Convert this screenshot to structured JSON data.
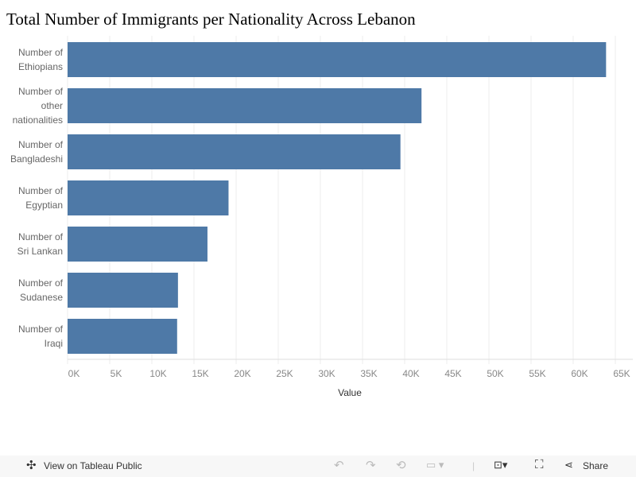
{
  "title": "Total Number of Immigrants per Nationality Across Lebanon",
  "chart_data": {
    "type": "bar",
    "orientation": "horizontal",
    "categories": [
      "Number of Ethiopians",
      "Number of other nationalities",
      "Number of Bangladeshi",
      "Number of Egyptian",
      "Number of Sri Lankan",
      "Number of Sudanese",
      "Number of Iraqi"
    ],
    "category_lines": [
      [
        "Number of",
        "Ethiopians"
      ],
      [
        "Number of",
        "other",
        "nationalities"
      ],
      [
        "Number of",
        "Bangladeshi"
      ],
      [
        "Number of",
        "Egyptian"
      ],
      [
        "Number of",
        "Sri Lankan"
      ],
      [
        "Number of",
        "Sudanese"
      ],
      [
        "Number of",
        "Iraqi"
      ]
    ],
    "values": [
      63900,
      42000,
      39500,
      19100,
      16600,
      13100,
      13000
    ],
    "xlabel": "Value",
    "xlim": [
      0,
      65000
    ],
    "ticks": [
      "0K",
      "5K",
      "10K",
      "15K",
      "20K",
      "25K",
      "30K",
      "35K",
      "40K",
      "45K",
      "50K",
      "55K",
      "60K",
      "65K"
    ],
    "grid": true,
    "color": "#4e79a7"
  },
  "toolbar": {
    "view_label": "View on Tableau Public",
    "share_label": "Share"
  }
}
